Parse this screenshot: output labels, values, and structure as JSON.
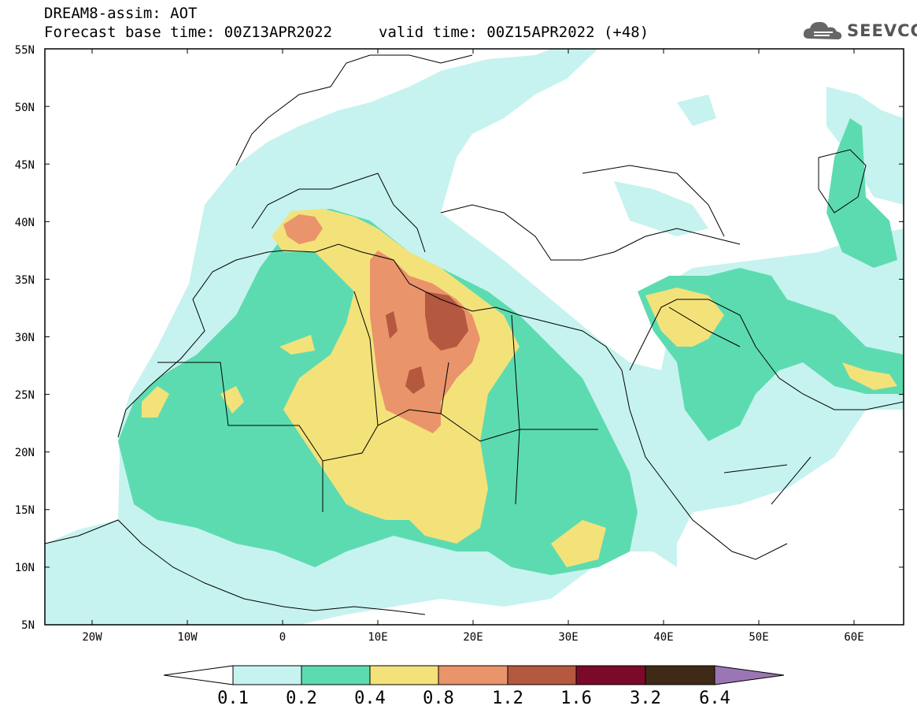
{
  "header": {
    "line1": "DREAM8-assim: AOT",
    "line2": "Forecast base time: 00Z13APR2022",
    "line3": "valid time: 00Z15APR2022 (+48)",
    "logo_text": "SEEVCCC"
  },
  "axes": {
    "lat_labels": [
      "55N",
      "50N",
      "45N",
      "40N",
      "35N",
      "30N",
      "25N",
      "20N",
      "15N",
      "10N",
      "5N"
    ],
    "lon_labels": [
      "20W",
      "10W",
      "0",
      "10E",
      "20E",
      "30E",
      "40E",
      "50E",
      "60E"
    ]
  },
  "legend": {
    "labels": [
      "0.1",
      "0.2",
      "0.4",
      "0.8",
      "1.2",
      "1.6",
      "3.2",
      "6.4"
    ],
    "colors": [
      "#c6f3ef",
      "#5ddbb0",
      "#f3e27a",
      "#e9946a",
      "#b4583f",
      "#7b0a2a",
      "#3f2a17",
      "#9a77b4"
    ]
  }
}
